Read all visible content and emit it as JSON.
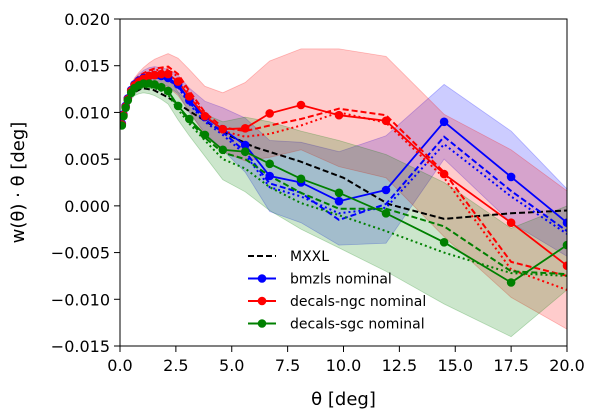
{
  "chart_data": {
    "type": "line",
    "xlabel": "θ [deg]",
    "ylabel": "w(θ) · θ [deg]",
    "xlim": [
      0,
      20
    ],
    "ylim": [
      -0.015,
      0.02
    ],
    "xticks": [
      0.0,
      2.5,
      5.0,
      7.5,
      10.0,
      12.5,
      15.0,
      17.5,
      20.0
    ],
    "xtick_labels": [
      "0.0",
      "2.5",
      "5.0",
      "7.5",
      "10.0",
      "12.5",
      "15.0",
      "17.5",
      "20.0"
    ],
    "yticks": [
      -0.015,
      -0.01,
      -0.005,
      0.0,
      0.005,
      0.01,
      0.015,
      0.02
    ],
    "ytick_labels": [
      "−0.015",
      "−0.010",
      "−0.005",
      "0.000",
      "0.005",
      "0.010",
      "0.015",
      "0.020"
    ],
    "grid": false,
    "legend_position": "lower-center",
    "legend": [
      {
        "label": "MXXL",
        "color": "#000000",
        "style": "dashed",
        "marker": false
      },
      {
        "label": "bmzls nominal",
        "color": "#0000ff",
        "style": "solid",
        "marker": true
      },
      {
        "label": "decals-ngc nominal",
        "color": "#ff0000",
        "style": "solid",
        "marker": true
      },
      {
        "label": "decals-sgc nominal",
        "color": "#008000",
        "style": "solid",
        "marker": true
      }
    ],
    "mxxl": {
      "color": "#000000",
      "x": [
        0.05,
        0.3,
        0.6,
        1.0,
        1.5,
        2.0,
        2.5,
        3.0,
        4.0,
        5.0,
        6.0,
        8.0,
        10.0,
        12.0,
        14.5,
        17.5,
        20.0
      ],
      "y": [
        0.0088,
        0.0108,
        0.0121,
        0.0126,
        0.0124,
        0.0118,
        0.0111,
        0.0103,
        0.0088,
        0.0074,
        0.0063,
        0.0048,
        0.003,
        0.0002,
        -0.0014,
        -0.0008,
        -0.0005
      ]
    },
    "series": [
      {
        "name": "bmzls nominal",
        "color": "#0000ff",
        "x": [
          0.08,
          0.15,
          0.25,
          0.35,
          0.5,
          0.65,
          0.85,
          1.05,
          1.3,
          1.55,
          1.85,
          2.15,
          2.6,
          3.1,
          3.8,
          4.6,
          5.6,
          6.7,
          8.1,
          9.8,
          11.9,
          14.5,
          17.5,
          20.0
        ],
        "y": [
          0.0088,
          0.0098,
          0.0107,
          0.0115,
          0.0124,
          0.013,
          0.0134,
          0.0137,
          0.0139,
          0.014,
          0.0139,
          0.0137,
          0.013,
          0.0113,
          0.0095,
          0.0082,
          0.0065,
          0.0032,
          0.0025,
          0.0005,
          0.0017,
          0.009,
          0.0031,
          -0.0018
        ],
        "dashed": [
          0.0086,
          0.0095,
          0.0104,
          0.0112,
          0.0121,
          0.0127,
          0.0131,
          0.0134,
          0.0136,
          0.0137,
          0.0137,
          0.0135,
          0.0128,
          0.0111,
          0.0092,
          0.0079,
          0.0058,
          0.0024,
          0.0014,
          -0.0015,
          0.0002,
          0.0074,
          0.0016,
          -0.0027
        ],
        "dotted": [
          0.0087,
          0.0096,
          0.0105,
          0.0113,
          0.0122,
          0.0128,
          0.0132,
          0.0135,
          0.0137,
          0.0138,
          0.0137,
          0.0135,
          0.0127,
          0.0109,
          0.009,
          0.0076,
          0.0055,
          0.002,
          0.001,
          -0.0008,
          -0.0002,
          0.0066,
          0.001,
          -0.003
        ],
        "band_upper": [
          0.009,
          0.0101,
          0.0111,
          0.012,
          0.0129,
          0.0136,
          0.0141,
          0.0145,
          0.0148,
          0.0149,
          0.0148,
          0.0146,
          0.014,
          0.0126,
          0.0112,
          0.0105,
          0.0094,
          0.007,
          0.0068,
          0.0058,
          0.0075,
          0.013,
          0.008,
          0.0018
        ],
        "band_lower": [
          0.0086,
          0.0095,
          0.0103,
          0.011,
          0.0118,
          0.0124,
          0.0127,
          0.0129,
          0.013,
          0.0131,
          0.013,
          0.0128,
          0.012,
          0.01,
          0.0078,
          0.006,
          0.0036,
          -0.0006,
          -0.0018,
          -0.0042,
          -0.004,
          0.005,
          -0.0018,
          -0.0054
        ]
      },
      {
        "name": "decals-ngc nominal",
        "color": "#ff0000",
        "x": [
          0.08,
          0.15,
          0.25,
          0.35,
          0.5,
          0.65,
          0.85,
          1.05,
          1.3,
          1.55,
          1.85,
          2.15,
          2.6,
          3.1,
          3.8,
          4.6,
          5.6,
          6.7,
          8.1,
          9.8,
          11.9,
          14.5,
          17.5,
          20.0
        ],
        "y": [
          0.0087,
          0.0097,
          0.0106,
          0.0114,
          0.0123,
          0.0129,
          0.0133,
          0.0136,
          0.0139,
          0.014,
          0.0141,
          0.0141,
          0.0133,
          0.0117,
          0.0096,
          0.0082,
          0.0083,
          0.0099,
          0.0108,
          0.0097,
          0.0091,
          0.0034,
          -0.0018,
          -0.0064
        ],
        "dashed": [
          0.0088,
          0.0098,
          0.0108,
          0.0117,
          0.0127,
          0.0134,
          0.0139,
          0.0142,
          0.0145,
          0.0147,
          0.0148,
          0.0149,
          0.0141,
          0.0123,
          0.01,
          0.0084,
          0.008,
          0.0086,
          0.0093,
          0.0104,
          0.0097,
          0.0036,
          -0.006,
          -0.0075
        ],
        "dotted": [
          0.0087,
          0.0097,
          0.0107,
          0.0116,
          0.0125,
          0.0132,
          0.0137,
          0.0141,
          0.0143,
          0.0145,
          0.0146,
          0.0146,
          0.0138,
          0.012,
          0.0098,
          0.008,
          0.0074,
          0.0077,
          0.0086,
          0.01,
          0.0089,
          0.003,
          -0.0068,
          -0.009
        ],
        "band_upper": [
          0.009,
          0.0101,
          0.0111,
          0.012,
          0.013,
          0.0137,
          0.0143,
          0.0148,
          0.0153,
          0.0157,
          0.016,
          0.0163,
          0.0158,
          0.0146,
          0.0128,
          0.0121,
          0.0132,
          0.0155,
          0.0168,
          0.0168,
          0.016,
          0.0098,
          0.006,
          0.0016
        ],
        "band_lower": [
          0.0085,
          0.0094,
          0.0102,
          0.0109,
          0.0117,
          0.0122,
          0.0125,
          0.0127,
          0.0128,
          0.0128,
          0.0128,
          0.0127,
          0.0118,
          0.0101,
          0.0076,
          0.0058,
          0.0048,
          0.0052,
          0.006,
          0.0042,
          0.003,
          -0.0033,
          -0.0098,
          -0.0132
        ]
      },
      {
        "name": "decals-sgc nominal",
        "color": "#008000",
        "x": [
          0.08,
          0.15,
          0.25,
          0.35,
          0.5,
          0.65,
          0.85,
          1.05,
          1.3,
          1.55,
          1.85,
          2.15,
          2.6,
          3.1,
          3.8,
          4.6,
          5.6,
          6.7,
          8.1,
          9.8,
          11.9,
          14.5,
          17.5,
          20.0
        ],
        "y": [
          0.0086,
          0.0096,
          0.0105,
          0.0113,
          0.0121,
          0.0126,
          0.0129,
          0.0131,
          0.0131,
          0.013,
          0.0127,
          0.0123,
          0.0107,
          0.0093,
          0.0076,
          0.006,
          0.0058,
          0.0045,
          0.0029,
          0.0014,
          -0.0008,
          -0.0039,
          -0.0082,
          -0.0042
        ],
        "dashed": [
          0.0085,
          0.0095,
          0.0104,
          0.0111,
          0.0119,
          0.0124,
          0.0127,
          0.0128,
          0.0129,
          0.0128,
          0.0125,
          0.0121,
          0.0106,
          0.0091,
          0.0073,
          0.0057,
          0.005,
          0.0032,
          0.0014,
          -0.0003,
          -0.0003,
          -0.0022,
          -0.007,
          -0.0073
        ],
        "dotted": [
          0.0085,
          0.0094,
          0.0103,
          0.011,
          0.0118,
          0.0123,
          0.0126,
          0.0127,
          0.0127,
          0.0126,
          0.0123,
          0.0119,
          0.0103,
          0.0088,
          0.007,
          0.005,
          0.004,
          0.002,
          0.0003,
          -0.001,
          -0.0027,
          -0.005,
          -0.0072,
          -0.0075
        ],
        "band_upper": [
          0.0089,
          0.01,
          0.011,
          0.0118,
          0.0127,
          0.0133,
          0.0137,
          0.014,
          0.0141,
          0.0141,
          0.0139,
          0.0136,
          0.0122,
          0.0111,
          0.0098,
          0.009,
          0.0095,
          0.009,
          0.008,
          0.007,
          0.0055,
          0.0025,
          -0.0024,
          0.0
        ],
        "band_lower": [
          0.0083,
          0.0092,
          0.01,
          0.0107,
          0.0114,
          0.0118,
          0.012,
          0.0121,
          0.012,
          0.0118,
          0.0114,
          0.0109,
          0.0092,
          0.0075,
          0.0053,
          0.0028,
          0.0015,
          -0.0005,
          -0.0025,
          -0.0045,
          -0.007,
          -0.0105,
          -0.014,
          -0.009
        ]
      }
    ]
  }
}
